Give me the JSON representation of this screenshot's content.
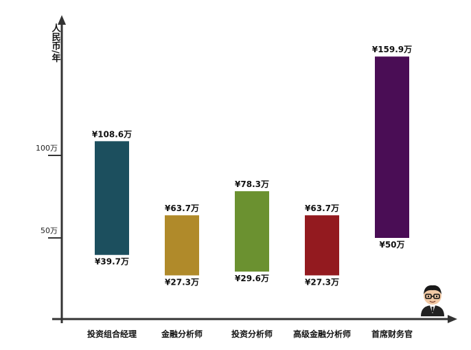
{
  "chart_data": {
    "type": "bar",
    "subtype": "floating-range",
    "ylabel": "人民币/年",
    "yticks": [
      {
        "value": 50,
        "label": "50万"
      },
      {
        "value": 100,
        "label": "100万"
      }
    ],
    "categories": [
      "投资组合经理",
      "金融分析师",
      "投资分析师",
      "高级金融分析师",
      "首席财务官"
    ],
    "series": [
      {
        "low": [
          39.7,
          27.3,
          29.6,
          27.3,
          50
        ],
        "high": [
          108.6,
          63.7,
          78.3,
          63.7,
          159.9
        ],
        "low_labels": [
          "¥39.7万",
          "¥27.3万",
          "¥29.6万",
          "¥27.3万",
          "¥50万"
        ],
        "high_labels": [
          "¥108.6万",
          "¥63.7万",
          "¥78.3万",
          "¥63.7万",
          "¥159.9万"
        ],
        "colors": [
          "#1c4f5e",
          "#b08a2a",
          "#6b9130",
          "#931a1f",
          "#4a0d55"
        ]
      }
    ],
    "grid": false,
    "legend": "none"
  },
  "decor": {
    "avatar": "cartoon-man-with-glasses-icon"
  }
}
